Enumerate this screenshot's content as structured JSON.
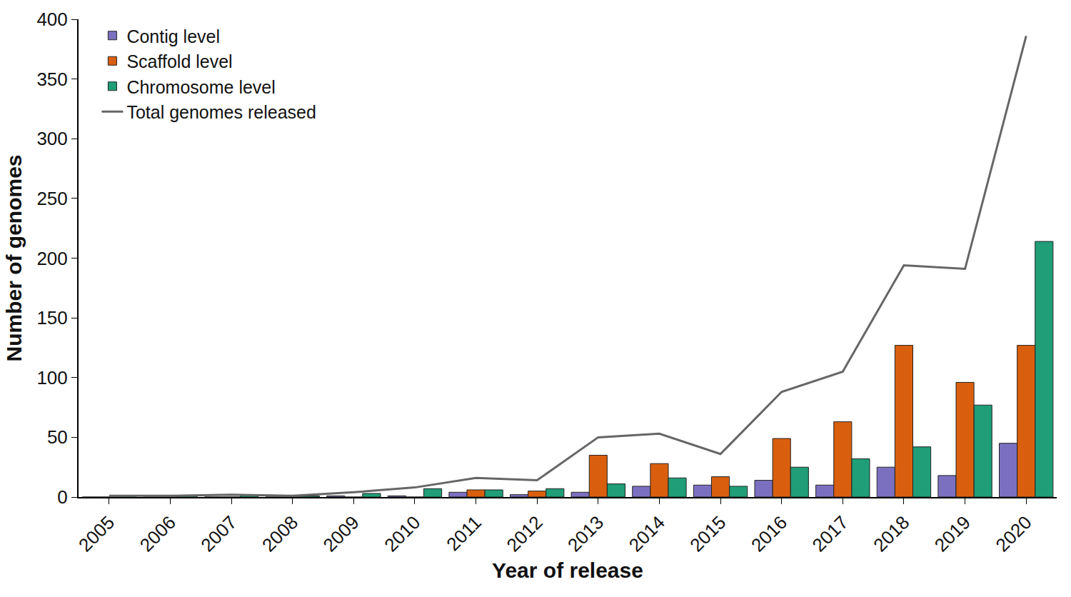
{
  "chart_data": {
    "type": "bar",
    "x_label": "Year of release",
    "y_label": "Number of genomes",
    "categories": [
      "2005",
      "2006",
      "2007",
      "2008",
      "2009",
      "2010",
      "2011",
      "2012",
      "2013",
      "2014",
      "2015",
      "2016",
      "2017",
      "2018",
      "2019",
      "2020"
    ],
    "series": [
      {
        "name": "Contig level",
        "type": "bar",
        "color": "#7b70c0",
        "values": [
          0,
          0,
          0,
          0,
          1,
          1,
          4,
          2,
          4,
          9,
          10,
          14,
          10,
          25,
          18,
          45
        ]
      },
      {
        "name": "Scaffold level",
        "type": "bar",
        "color": "#d95f0e",
        "values": [
          0,
          0,
          0,
          0,
          0,
          0,
          6,
          5,
          35,
          28,
          17,
          49,
          63,
          127,
          96,
          127
        ]
      },
      {
        "name": "Chromosome level",
        "type": "bar",
        "color": "#1f9e78",
        "values": [
          1,
          1,
          2,
          1,
          3,
          7,
          6,
          7,
          11,
          16,
          9,
          25,
          32,
          42,
          77,
          214
        ]
      },
      {
        "name": "Total genomes released",
        "type": "line",
        "color": "#666666",
        "values": [
          1,
          1,
          2,
          1,
          4,
          8,
          16,
          14,
          50,
          53,
          36,
          88,
          105,
          194,
          191,
          386
        ]
      }
    ],
    "ylim": [
      0,
      400
    ],
    "yticks": [
      0,
      50,
      100,
      150,
      200,
      250,
      300,
      350,
      400
    ],
    "grid": false,
    "legend": "top-left"
  }
}
